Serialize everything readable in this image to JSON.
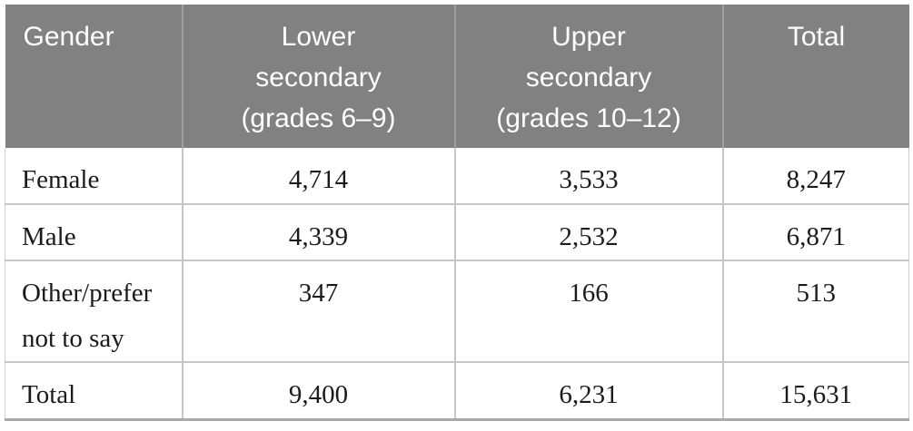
{
  "table": {
    "header": {
      "columns": [
        "Gender",
        "Lower\nsecondary\n(grades 6–9)",
        "Upper\nsecondary\n(grades 10–12)",
        "Total"
      ]
    },
    "rows": [
      {
        "label": "Female",
        "values": [
          "4,714",
          "3,533",
          "8,247"
        ]
      },
      {
        "label": "Male",
        "values": [
          "4,339",
          "2,532",
          "6,871"
        ]
      },
      {
        "label": "Other/prefer not to say",
        "values": [
          "347",
          "166",
          "513"
        ]
      },
      {
        "label": "Total",
        "values": [
          "9,400",
          "6,231",
          "15,631"
        ]
      }
    ],
    "colors": {
      "header_bg": "#818181",
      "header_text": "#ffffff",
      "header_divider": "#9f9f9f",
      "body_text": "#1b1b1b",
      "grid_line": "#c6c6c6",
      "outer_side_border": "#d2d2d2",
      "bottom_border": "#a9a9a9",
      "page_bg": "#ffffff"
    }
  }
}
